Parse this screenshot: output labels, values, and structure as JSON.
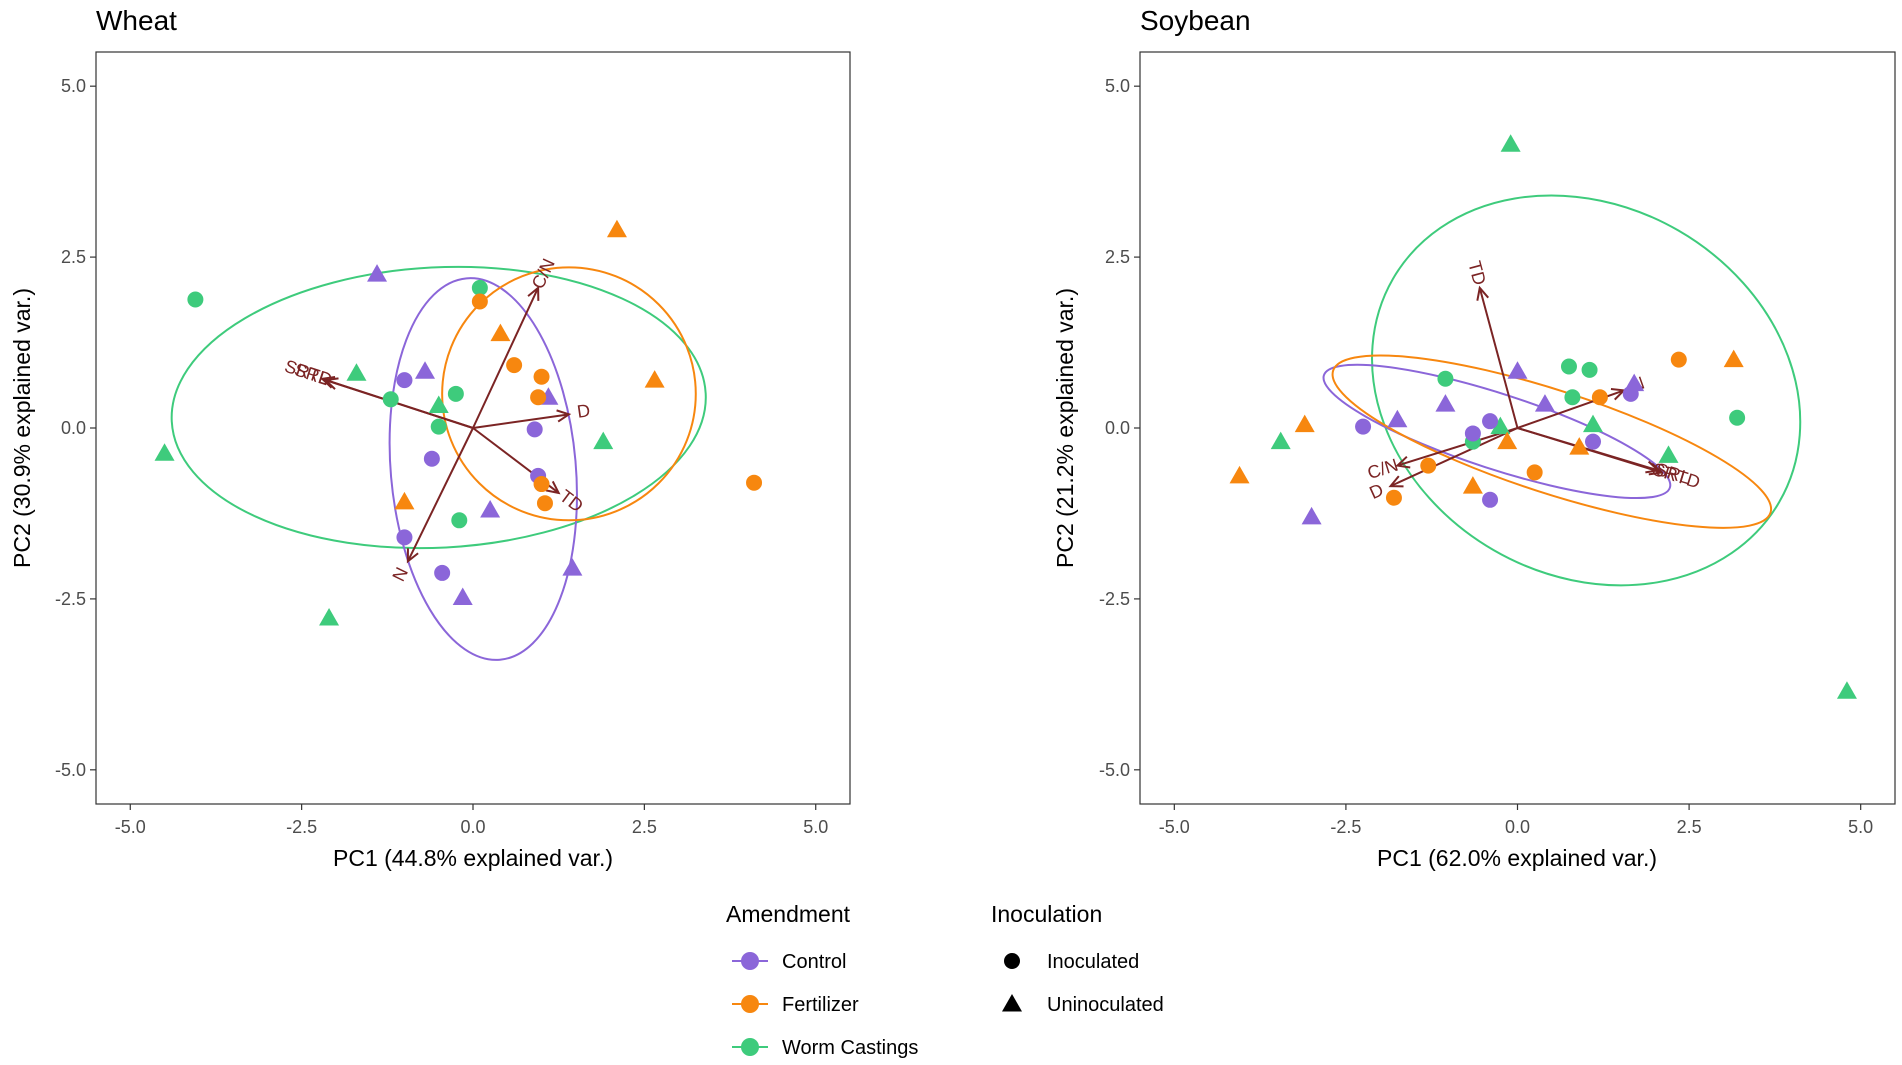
{
  "colors": {
    "control": "#8b66d9",
    "fertilizer": "#f7870f",
    "worm_castings": "#3ecb7c",
    "arrow": "#7b2424",
    "axis": "#4d4d4d",
    "text": "#000000",
    "tick_text": "#4d4d4d"
  },
  "legend": {
    "amendment_title": "Amendment",
    "amendment_items": [
      {
        "key": "control",
        "label": "Control"
      },
      {
        "key": "fertilizer",
        "label": "Fertilizer"
      },
      {
        "key": "worm_castings",
        "label": "Worm Castings"
      }
    ],
    "inoculation_title": "Inoculation",
    "inoculation_items": [
      {
        "shape": "circle",
        "label": "Inoculated"
      },
      {
        "shape": "triangle",
        "label": "Uninoculated"
      }
    ]
  },
  "chart_data": [
    {
      "type": "scatter",
      "title": "Wheat",
      "xlabel": "PC1 (44.8% explained var.)",
      "ylabel": "PC2 (30.9% explained var.)",
      "xlim": [
        -5.5,
        5.5
      ],
      "ylim": [
        -5.5,
        5.5
      ],
      "xticks": [
        -5.0,
        -2.5,
        0.0,
        2.5,
        5.0
      ],
      "yticks": [
        -5.0,
        -2.5,
        0.0,
        2.5,
        5.0
      ],
      "tick_labels": [
        "-5.0",
        "-2.5",
        "0.0",
        "2.5",
        "5.0"
      ],
      "points": [
        {
          "x": -4.05,
          "y": 1.88,
          "group": "worm_castings",
          "shape": "circle"
        },
        {
          "x": -4.5,
          "y": -0.37,
          "group": "worm_castings",
          "shape": "triangle"
        },
        {
          "x": -1.7,
          "y": 0.8,
          "group": "worm_castings",
          "shape": "triangle"
        },
        {
          "x": -2.1,
          "y": -2.78,
          "group": "worm_castings",
          "shape": "triangle"
        },
        {
          "x": -1.2,
          "y": 0.42,
          "group": "worm_castings",
          "shape": "circle"
        },
        {
          "x": -0.5,
          "y": 0.02,
          "group": "worm_castings",
          "shape": "circle"
        },
        {
          "x": -0.5,
          "y": 0.33,
          "group": "worm_castings",
          "shape": "triangle"
        },
        {
          "x": -0.25,
          "y": 0.5,
          "group": "worm_castings",
          "shape": "circle"
        },
        {
          "x": -0.2,
          "y": -1.35,
          "group": "worm_castings",
          "shape": "circle"
        },
        {
          "x": 0.1,
          "y": 2.05,
          "group": "worm_castings",
          "shape": "circle"
        },
        {
          "x": 1.9,
          "y": -0.2,
          "group": "worm_castings",
          "shape": "triangle"
        },
        {
          "x": -1.4,
          "y": 2.25,
          "group": "control",
          "shape": "triangle"
        },
        {
          "x": -0.7,
          "y": 0.83,
          "group": "control",
          "shape": "triangle"
        },
        {
          "x": -1.0,
          "y": 0.7,
          "group": "control",
          "shape": "circle"
        },
        {
          "x": -0.6,
          "y": -0.45,
          "group": "control",
          "shape": "circle"
        },
        {
          "x": -1.0,
          "y": -1.6,
          "group": "control",
          "shape": "circle"
        },
        {
          "x": -0.45,
          "y": -2.12,
          "group": "control",
          "shape": "circle"
        },
        {
          "x": -0.15,
          "y": -2.48,
          "group": "control",
          "shape": "triangle"
        },
        {
          "x": 0.25,
          "y": -1.2,
          "group": "control",
          "shape": "triangle"
        },
        {
          "x": 0.9,
          "y": -0.02,
          "group": "control",
          "shape": "circle"
        },
        {
          "x": 0.95,
          "y": -0.7,
          "group": "control",
          "shape": "circle"
        },
        {
          "x": 1.1,
          "y": 0.45,
          "group": "control",
          "shape": "triangle"
        },
        {
          "x": 1.45,
          "y": -2.05,
          "group": "control",
          "shape": "triangle"
        },
        {
          "x": 2.1,
          "y": 2.9,
          "group": "fertilizer",
          "shape": "triangle"
        },
        {
          "x": 0.1,
          "y": 1.85,
          "group": "fertilizer",
          "shape": "circle"
        },
        {
          "x": 0.4,
          "y": 1.38,
          "group": "fertilizer",
          "shape": "triangle"
        },
        {
          "x": 0.6,
          "y": 0.92,
          "group": "fertilizer",
          "shape": "circle"
        },
        {
          "x": 1.0,
          "y": 0.75,
          "group": "fertilizer",
          "shape": "circle"
        },
        {
          "x": 0.95,
          "y": 0.45,
          "group": "fertilizer",
          "shape": "circle"
        },
        {
          "x": 2.65,
          "y": 0.7,
          "group": "fertilizer",
          "shape": "triangle"
        },
        {
          "x": 1.0,
          "y": -0.82,
          "group": "fertilizer",
          "shape": "circle"
        },
        {
          "x": 1.05,
          "y": -1.1,
          "group": "fertilizer",
          "shape": "circle"
        },
        {
          "x": -1.0,
          "y": -1.08,
          "group": "fertilizer",
          "shape": "triangle"
        },
        {
          "x": 4.1,
          "y": -0.8,
          "group": "fertilizer",
          "shape": "circle"
        }
      ],
      "ellipses": [
        {
          "group": "worm_castings",
          "cx": -0.5,
          "cy": 0.3,
          "rx": 3.9,
          "ry": 2.05,
          "angle": 3
        },
        {
          "group": "control",
          "cx": 0.15,
          "cy": -0.6,
          "rx": 1.35,
          "ry": 2.8,
          "angle": 5
        },
        {
          "group": "fertilizer",
          "cx": 1.4,
          "cy": 0.5,
          "rx": 1.85,
          "ry": 1.85,
          "angle": 0
        }
      ],
      "loadings": [
        {
          "label": "C/N",
          "x": 0.95,
          "y": 2.05
        },
        {
          "label": "D",
          "x": 1.4,
          "y": 0.2
        },
        {
          "label": "TD",
          "x": 1.25,
          "y": -0.95
        },
        {
          "label": "N",
          "x": -0.95,
          "y": -1.95
        },
        {
          "label": "SRL",
          "x": -2.15,
          "y": 0.7
        },
        {
          "label": "SRTD",
          "x": -2.2,
          "y": 0.72
        }
      ]
    },
    {
      "type": "scatter",
      "title": "Soybean",
      "xlabel": "PC1 (62.0% explained var.)",
      "ylabel": "PC2 (21.2% explained var.)",
      "xlim": [
        -5.5,
        5.5
      ],
      "ylim": [
        -5.5,
        5.5
      ],
      "xticks": [
        -5.0,
        -2.5,
        0.0,
        2.5,
        5.0
      ],
      "yticks": [
        -5.0,
        -2.5,
        0.0,
        2.5,
        5.0
      ],
      "tick_labels": [
        "-5.0",
        "-2.5",
        "0.0",
        "2.5",
        "5.0"
      ],
      "points": [
        {
          "x": -0.1,
          "y": 4.15,
          "group": "worm_castings",
          "shape": "triangle"
        },
        {
          "x": 4.8,
          "y": -3.85,
          "group": "worm_castings",
          "shape": "triangle"
        },
        {
          "x": -3.45,
          "y": -0.2,
          "group": "worm_castings",
          "shape": "triangle"
        },
        {
          "x": -1.05,
          "y": 0.72,
          "group": "worm_castings",
          "shape": "circle"
        },
        {
          "x": -0.65,
          "y": -0.2,
          "group": "worm_castings",
          "shape": "circle"
        },
        {
          "x": -0.25,
          "y": 0.02,
          "group": "worm_castings",
          "shape": "triangle"
        },
        {
          "x": 0.75,
          "y": 0.9,
          "group": "worm_castings",
          "shape": "circle"
        },
        {
          "x": 1.05,
          "y": 0.85,
          "group": "worm_castings",
          "shape": "circle"
        },
        {
          "x": 0.8,
          "y": 0.45,
          "group": "worm_castings",
          "shape": "circle"
        },
        {
          "x": 1.1,
          "y": 0.05,
          "group": "worm_castings",
          "shape": "triangle"
        },
        {
          "x": 2.2,
          "y": -0.4,
          "group": "worm_castings",
          "shape": "triangle"
        },
        {
          "x": 3.2,
          "y": 0.15,
          "group": "worm_castings",
          "shape": "circle"
        },
        {
          "x": -2.25,
          "y": 0.02,
          "group": "control",
          "shape": "circle"
        },
        {
          "x": -1.75,
          "y": 0.12,
          "group": "control",
          "shape": "triangle"
        },
        {
          "x": -1.05,
          "y": 0.35,
          "group": "control",
          "shape": "triangle"
        },
        {
          "x": -0.65,
          "y": -0.08,
          "group": "control",
          "shape": "circle"
        },
        {
          "x": -0.4,
          "y": 0.1,
          "group": "control",
          "shape": "circle"
        },
        {
          "x": 0.0,
          "y": 0.83,
          "group": "control",
          "shape": "triangle"
        },
        {
          "x": 0.4,
          "y": 0.35,
          "group": "control",
          "shape": "triangle"
        },
        {
          "x": 1.1,
          "y": -0.2,
          "group": "control",
          "shape": "circle"
        },
        {
          "x": 1.65,
          "y": 0.5,
          "group": "control",
          "shape": "circle"
        },
        {
          "x": 1.7,
          "y": 0.65,
          "group": "control",
          "shape": "triangle"
        },
        {
          "x": -0.4,
          "y": -1.05,
          "group": "control",
          "shape": "circle"
        },
        {
          "x": -3.0,
          "y": -1.3,
          "group": "control",
          "shape": "triangle"
        },
        {
          "x": -4.05,
          "y": -0.7,
          "group": "fertilizer",
          "shape": "triangle"
        },
        {
          "x": -3.1,
          "y": 0.05,
          "group": "fertilizer",
          "shape": "triangle"
        },
        {
          "x": -1.8,
          "y": -1.02,
          "group": "fertilizer",
          "shape": "circle"
        },
        {
          "x": -1.3,
          "y": -0.55,
          "group": "fertilizer",
          "shape": "circle"
        },
        {
          "x": -0.65,
          "y": -0.85,
          "group": "fertilizer",
          "shape": "triangle"
        },
        {
          "x": -0.15,
          "y": -0.2,
          "group": "fertilizer",
          "shape": "triangle"
        },
        {
          "x": 0.25,
          "y": -0.65,
          "group": "fertilizer",
          "shape": "circle"
        },
        {
          "x": 0.9,
          "y": -0.28,
          "group": "fertilizer",
          "shape": "triangle"
        },
        {
          "x": 1.2,
          "y": 0.45,
          "group": "fertilizer",
          "shape": "circle"
        },
        {
          "x": 2.35,
          "y": 1.0,
          "group": "fertilizer",
          "shape": "circle"
        },
        {
          "x": 3.15,
          "y": 1.0,
          "group": "fertilizer",
          "shape": "triangle"
        }
      ],
      "ellipses": [
        {
          "group": "worm_castings",
          "cx": 1.0,
          "cy": 0.55,
          "rx": 3.25,
          "ry": 2.7,
          "angle": -30
        },
        {
          "group": "control",
          "cx": -0.3,
          "cy": -0.05,
          "rx": 2.65,
          "ry": 0.55,
          "angle": -18
        },
        {
          "group": "fertilizer",
          "cx": 0.5,
          "cy": -0.2,
          "rx": 3.35,
          "ry": 0.75,
          "angle": -18
        }
      ],
      "loadings": [
        {
          "label": "TD",
          "x": -0.55,
          "y": 2.05
        },
        {
          "label": "N",
          "x": 1.55,
          "y": 0.55
        },
        {
          "label": "SRL",
          "x": 2.05,
          "y": -0.62
        },
        {
          "label": "SRTD",
          "x": 2.1,
          "y": -0.65
        },
        {
          "label": "C/N",
          "x": -1.75,
          "y": -0.55
        },
        {
          "label": "D",
          "x": -1.85,
          "y": -0.85
        }
      ]
    }
  ]
}
